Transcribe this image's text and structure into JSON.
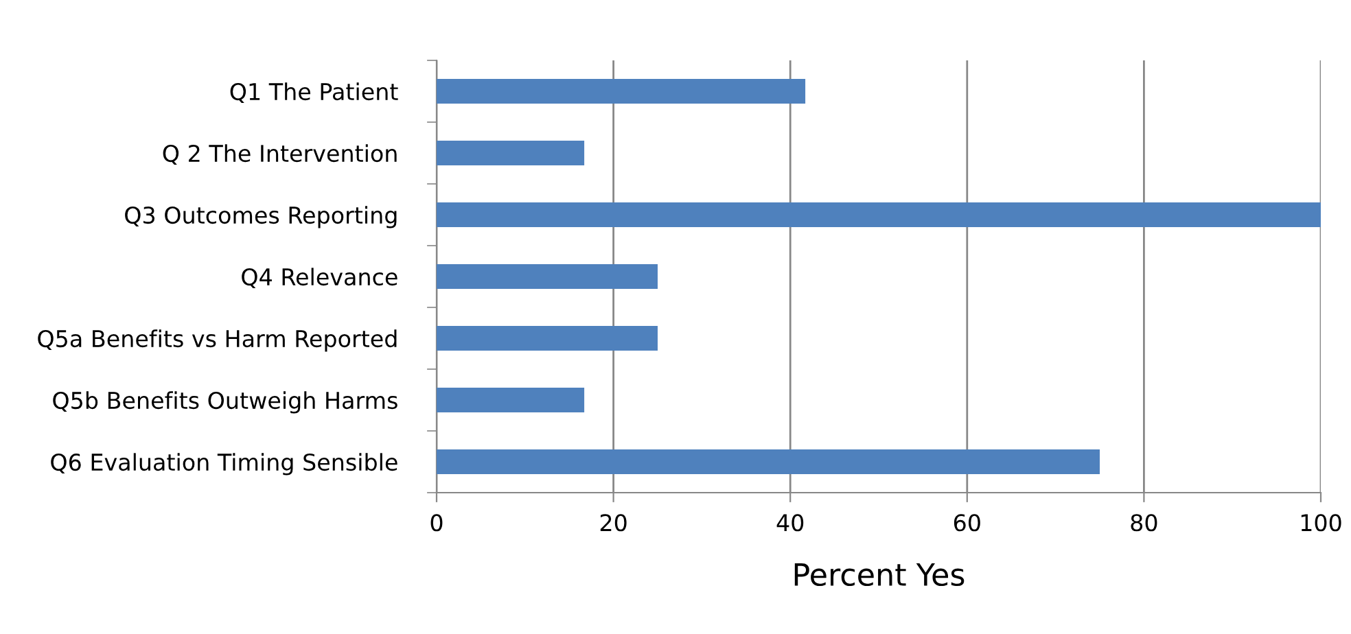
{
  "chart_data": {
    "type": "bar",
    "orientation": "horizontal",
    "xlabel": "Percent Yes",
    "categories": [
      "Q1 The Patient",
      "Q 2 The Intervention",
      "Q3 Outcomes Reporting",
      "Q4 Relevance",
      "Q5a Benefits vs Harm Reported",
      "Q5b Benefits Outweigh Harms",
      "Q6 Evaluation Timing Sensible"
    ],
    "values": [
      41.7,
      16.7,
      100,
      25,
      25,
      16.7,
      75
    ],
    "color": "#4f81bd",
    "xlim": [
      0,
      100
    ],
    "xticks": [
      0,
      20,
      40,
      60,
      80,
      100
    ],
    "grid": "x",
    "legend": false
  }
}
